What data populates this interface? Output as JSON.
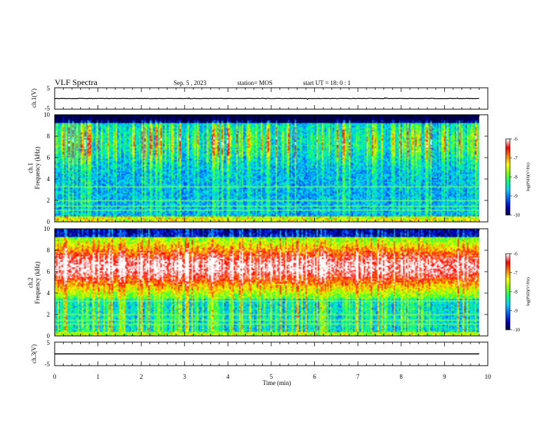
{
  "header": {
    "title": "VLF Spectra",
    "date": "Sep. 5 , 2023",
    "station": "station= MOS",
    "start": "start UT =  18: 0  : 1"
  },
  "chart_data": [
    {
      "type": "line",
      "panel": "ch1-waveform",
      "ylabel": "ch.1(V)",
      "ylim": [
        -5,
        5
      ],
      "yticks": [
        "5",
        "-5"
      ],
      "x": [
        0,
        9.8
      ],
      "values": [
        0,
        0
      ]
    },
    {
      "type": "heatmap",
      "panel": "ch1-spectrogram",
      "ylabel": "ch.1",
      "ylabel2": "Frequency (kHz)",
      "ylim": [
        0,
        10
      ],
      "xlim": [
        0,
        10
      ],
      "yticks": [
        "0",
        "2",
        "4",
        "6",
        "8",
        "10"
      ],
      "colorbar": {
        "label": "log(PSD)(V²/Hz)",
        "range": [
          -10,
          -6
        ],
        "ticks": [
          "-6",
          "-7",
          "-8",
          "-9",
          "-10"
        ]
      },
      "note": "broadband sferic activity; strongest power 6–9 kHz in intermittent vertical bursts"
    },
    {
      "type": "heatmap",
      "panel": "ch2-spectrogram",
      "ylabel": "ch.2",
      "ylabel2": "Frequency (kHz)",
      "ylim": [
        0,
        10
      ],
      "xlim": [
        0,
        10
      ],
      "yticks": [
        "0",
        "2",
        "4",
        "6",
        "8",
        "10"
      ],
      "colorbar": {
        "label": "log(PSD)(V²/Hz)",
        "range": [
          -10,
          -6
        ],
        "ticks": [
          "-6",
          "-7",
          "-8",
          "-9",
          "-10"
        ]
      },
      "note": "continuous high power band between ~4 and ~9 kHz"
    },
    {
      "type": "line",
      "panel": "ch3-waveform",
      "ylabel": "ch.3(V)",
      "ylim": [
        -5,
        5
      ],
      "yticks": [
        "5",
        "-5"
      ],
      "x": [
        0,
        9.8
      ],
      "values": [
        0,
        0
      ]
    }
  ],
  "xaxis": {
    "label": "Time (min)",
    "ticks": [
      "0",
      "1",
      "2",
      "3",
      "4",
      "5",
      "6",
      "7",
      "8",
      "9",
      "10"
    ]
  },
  "colors": {
    "scale": [
      "#000040",
      "#0000c8",
      "#0060ff",
      "#00d0ff",
      "#00ff80",
      "#80ff00",
      "#ffff00",
      "#ff8000",
      "#ff0000",
      "#ffffff"
    ]
  }
}
